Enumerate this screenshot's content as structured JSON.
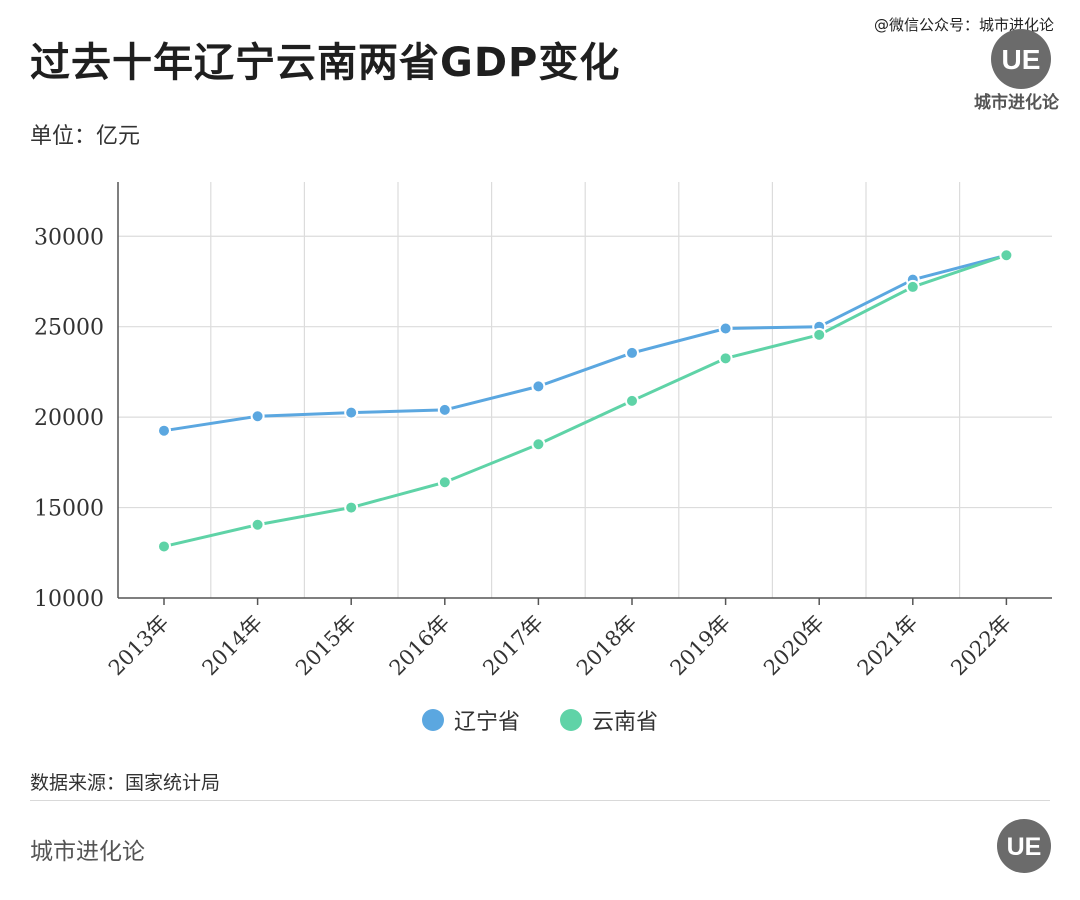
{
  "header": {
    "title": "过去十年辽宁云南两省GDP变化",
    "unit": "单位：亿元",
    "watermark": "@微信公众号：城市进化论",
    "logo_text": "城市进化论"
  },
  "footer": {
    "source": "数据来源：国家统计局",
    "brand": "城市进化论"
  },
  "colors": {
    "liaoning": "#5ba7e0",
    "yunnan": "#5fd3a7",
    "grid": "#dcdcdc",
    "axis": "#555555"
  },
  "chart_data": {
    "type": "line",
    "title": "过去十年辽宁云南两省GDP变化",
    "ylabel": "单位：亿元",
    "xlabel": "",
    "categories": [
      "2013年",
      "2014年",
      "2015年",
      "2016年",
      "2017年",
      "2018年",
      "2019年",
      "2020年",
      "2021年",
      "2022年"
    ],
    "series": [
      {
        "name": "辽宁省",
        "color": "#5ba7e0",
        "values": [
          19250,
          20050,
          20250,
          20400,
          21700,
          23550,
          24900,
          25000,
          27600,
          28950
        ]
      },
      {
        "name": "云南省",
        "color": "#5fd3a7",
        "values": [
          12850,
          14050,
          15000,
          16400,
          18500,
          20900,
          23250,
          24550,
          27200,
          28950
        ]
      }
    ],
    "ylim": [
      10000,
      33000
    ],
    "yticks": [
      10000,
      15000,
      20000,
      25000,
      30000
    ],
    "grid": true,
    "legend": "bottom"
  }
}
